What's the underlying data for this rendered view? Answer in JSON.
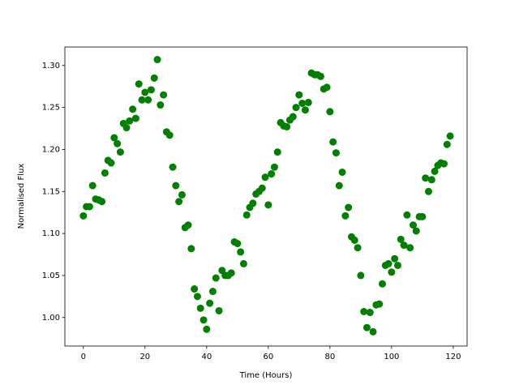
{
  "chart_data": {
    "type": "scatter",
    "xlabel": "Time (Hours)",
    "ylabel": "Normalised Flux",
    "color": "#008000",
    "xlim": [
      -6,
      124.5
    ],
    "ylim": [
      0.966,
      1.322
    ],
    "xticks": [
      0,
      20,
      40,
      60,
      80,
      100,
      120
    ],
    "yticks": [
      {
        "value": 1,
        "label": "1.00"
      },
      1.05,
      {
        "value": 1.1,
        "label": "1.10"
      },
      1.15,
      {
        "value": 1.2,
        "label": "1.20"
      },
      1.25,
      {
        "value": 1.3,
        "label": "1.30"
      }
    ],
    "x": [
      0,
      1,
      2,
      3,
      4,
      5,
      6,
      7,
      8,
      9,
      10,
      11,
      12,
      13,
      14,
      15,
      16,
      17,
      18,
      19,
      20,
      21,
      22,
      23,
      24,
      25,
      26,
      27,
      28,
      29,
      30,
      31,
      32,
      33,
      34,
      35,
      36,
      37,
      38,
      39,
      40,
      41,
      42,
      43,
      44,
      45,
      46,
      47,
      48,
      49,
      50,
      51,
      52,
      53,
      54,
      55,
      56,
      57,
      58,
      59,
      60,
      61,
      62,
      63,
      64,
      65,
      66,
      67,
      68,
      69,
      70,
      71,
      72,
      73,
      74,
      75,
      76,
      77,
      78,
      79,
      80,
      81,
      82,
      83,
      84,
      85,
      86,
      87,
      88,
      89,
      90,
      91,
      92,
      93,
      94,
      95,
      96,
      97,
      98,
      99,
      100,
      101,
      102,
      103,
      104,
      105,
      106,
      107,
      108,
      109,
      110,
      111,
      112,
      113,
      114,
      115,
      116,
      117,
      118,
      119
    ],
    "y": [
      1.121,
      1.132,
      1.132,
      1.157,
      1.141,
      1.14,
      1.138,
      1.172,
      1.187,
      1.184,
      1.214,
      1.207,
      1.197,
      1.231,
      1.226,
      1.234,
      1.248,
      1.237,
      1.278,
      1.259,
      1.268,
      1.259,
      1.271,
      1.285,
      1.307,
      1.253,
      1.265,
      1.221,
      1.217,
      1.179,
      1.157,
      1.138,
      1.146,
      1.107,
      1.11,
      1.082,
      1.034,
      1.025,
      1.011,
      0.997,
      0.986,
      1.017,
      1.031,
      1.047,
      1.008,
      1.056,
      1.05,
      1.05,
      1.053,
      1.09,
      1.088,
      1.078,
      1.064,
      1.122,
      1.131,
      1.136,
      1.147,
      1.15,
      1.154,
      1.167,
      1.134,
      1.171,
      1.179,
      1.197,
      1.232,
      1.228,
      1.227,
      1.235,
      1.239,
      1.25,
      1.265,
      1.255,
      1.247,
      1.256,
      1.291,
      1.289,
      1.289,
      1.287,
      1.272,
      1.274,
      1.245,
      1.209,
      1.196,
      1.157,
      1.173,
      1.121,
      1.131,
      1.096,
      1.092,
      1.083,
      1.05,
      1.007,
      0.988,
      1.006,
      0.983,
      1.015,
      1.016,
      1.04,
      1.062,
      1.064,
      1.054,
      1.07,
      1.062,
      1.093,
      1.086,
      1.122,
      1.083,
      1.11,
      1.103,
      1.12,
      1.12,
      1.166,
      1.15,
      1.164,
      1.174,
      1.181,
      1.184,
      1.183,
      1.206,
      1.216
    ]
  }
}
